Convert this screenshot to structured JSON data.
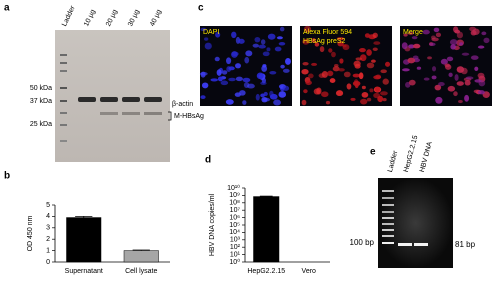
{
  "panels": {
    "a": {
      "label": "a",
      "lanes": [
        "Ladder",
        "10 µg",
        "20 µg",
        "30 µg",
        "40 µg"
      ],
      "markers": [
        "50 kDa",
        "37 kDa",
        "25 kDa"
      ],
      "band_labels": [
        "β-actin",
        "M-HBsAg"
      ]
    },
    "c": {
      "label": "c",
      "images": [
        {
          "title": [
            "DAPI"
          ]
        },
        {
          "title": [
            "Alexa Fluor 594",
            "HBsAg preS2"
          ]
        },
        {
          "title": [
            "Merge"
          ]
        }
      ]
    },
    "e": {
      "label": "e",
      "lanes": [
        "Ladder",
        "HepG2.2.15",
        "HBV DNA"
      ],
      "marker_label": "100 bp",
      "band_label": "81 bp"
    }
  },
  "chart_data": [
    {
      "type": "bar",
      "panel_label": "b",
      "ylabel": "OD 450 nm",
      "categories": [
        "Supernatant",
        "Cell lysate"
      ],
      "values": [
        3.9,
        1.0
      ],
      "errors": [
        0.1,
        0.05
      ],
      "colors": [
        "#000000",
        "#a6a6a6"
      ],
      "ylim": [
        0,
        5
      ],
      "yticks": [
        0,
        1,
        2,
        3,
        4,
        5
      ]
    },
    {
      "type": "bar",
      "panel_label": "d",
      "ylabel": "HBV DNA copies/ml",
      "log_scale": true,
      "categories": [
        "HepG2.2.15",
        "Vero"
      ],
      "values": [
        700000000,
        null
      ],
      "errors": [
        100000000,
        null
      ],
      "colors": [
        "#000000",
        "#000000"
      ],
      "ylim": [
        1,
        10000000000
      ],
      "yticks": [
        {
          "value": 1,
          "label": "10⁰"
        },
        {
          "value": 10,
          "label": "10¹"
        },
        {
          "value": 100,
          "label": "10²"
        },
        {
          "value": 1000,
          "label": "10³"
        },
        {
          "value": 10000,
          "label": "10⁴"
        },
        {
          "value": 100000,
          "label": "10⁵"
        },
        {
          "value": 1000000,
          "label": "10⁶"
        },
        {
          "value": 10000000,
          "label": "10⁷"
        },
        {
          "value": 100000000,
          "label": "10⁸"
        },
        {
          "value": 1000000000,
          "label": "10⁹"
        },
        {
          "value": 10000000000,
          "label": "10¹⁰"
        }
      ]
    }
  ]
}
